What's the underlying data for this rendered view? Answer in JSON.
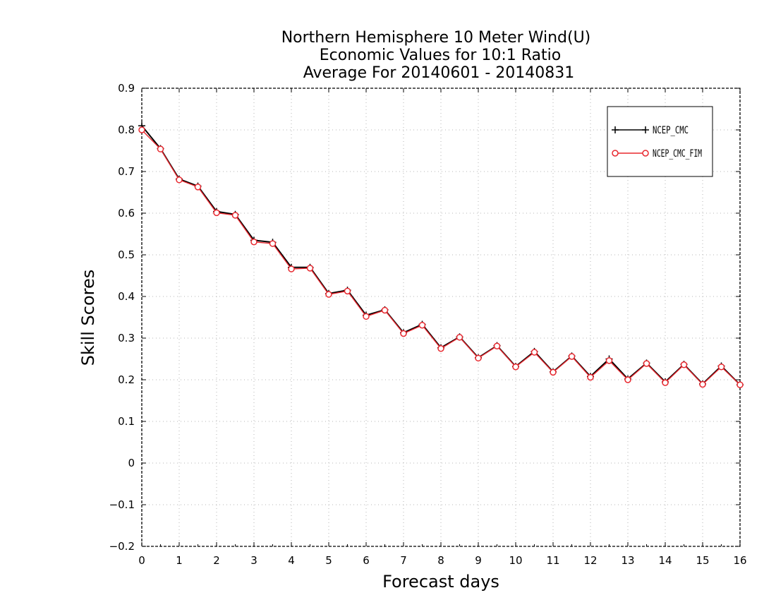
{
  "chart_data": {
    "type": "line",
    "title": [
      "Northern Hemisphere 10 Meter Wind(U)",
      "Economic Values for 10:1 Ratio",
      "Average For 20140601 - 20140831"
    ],
    "xlabel": "Forecast days",
    "ylabel": "Skill Scores",
    "xlim": [
      0,
      16
    ],
    "ylim": [
      -0.2,
      0.9
    ],
    "xticks": [
      0,
      1,
      2,
      3,
      4,
      5,
      6,
      7,
      8,
      9,
      10,
      11,
      12,
      13,
      14,
      15,
      16
    ],
    "yticks": [
      -0.2,
      -0.1,
      0,
      0.1,
      0.2,
      0.3,
      0.4,
      0.5,
      0.6,
      0.7,
      0.8,
      0.9
    ],
    "xtick_labels": [
      "0",
      "1",
      "2",
      "3",
      "4",
      "5",
      "6",
      "7",
      "8",
      "9",
      "10",
      "11",
      "12",
      "13",
      "14",
      "15",
      "16"
    ],
    "ytick_labels": [
      "−0.2",
      "−0.1",
      "0",
      "0.1",
      "0.2",
      "0.3",
      "0.4",
      "0.5",
      "0.6",
      "0.7",
      "0.8",
      "0.9"
    ],
    "grid": true,
    "legend_position": "top-right",
    "x": [
      0,
      0.5,
      1,
      1.5,
      2,
      2.5,
      3,
      3.5,
      4,
      4.5,
      5,
      5.5,
      6,
      6.5,
      7,
      7.5,
      8,
      8.5,
      9,
      9.5,
      10,
      10.5,
      11,
      11.5,
      12,
      12.5,
      13,
      13.5,
      14,
      14.5,
      15,
      15.5,
      16
    ],
    "series": [
      {
        "name": "NCEP_CMC",
        "color": "#000000",
        "marker": "plus",
        "values": [
          0.81,
          0.755,
          0.682,
          0.665,
          0.604,
          0.597,
          0.535,
          0.53,
          0.47,
          0.47,
          0.407,
          0.415,
          0.355,
          0.368,
          0.313,
          0.333,
          0.277,
          0.303,
          0.253,
          0.282,
          0.232,
          0.268,
          0.219,
          0.257,
          0.208,
          0.25,
          0.202,
          0.24,
          0.195,
          0.237,
          0.19,
          0.233,
          0.188
        ]
      },
      {
        "name": "NCEP_CMC_FIM",
        "color": "#e8282f",
        "marker": "circle",
        "values": [
          0.8,
          0.754,
          0.68,
          0.663,
          0.601,
          0.595,
          0.531,
          0.527,
          0.466,
          0.468,
          0.405,
          0.413,
          0.352,
          0.367,
          0.311,
          0.331,
          0.275,
          0.302,
          0.252,
          0.281,
          0.231,
          0.266,
          0.218,
          0.256,
          0.206,
          0.246,
          0.2,
          0.239,
          0.193,
          0.236,
          0.189,
          0.231,
          0.188
        ]
      }
    ]
  }
}
